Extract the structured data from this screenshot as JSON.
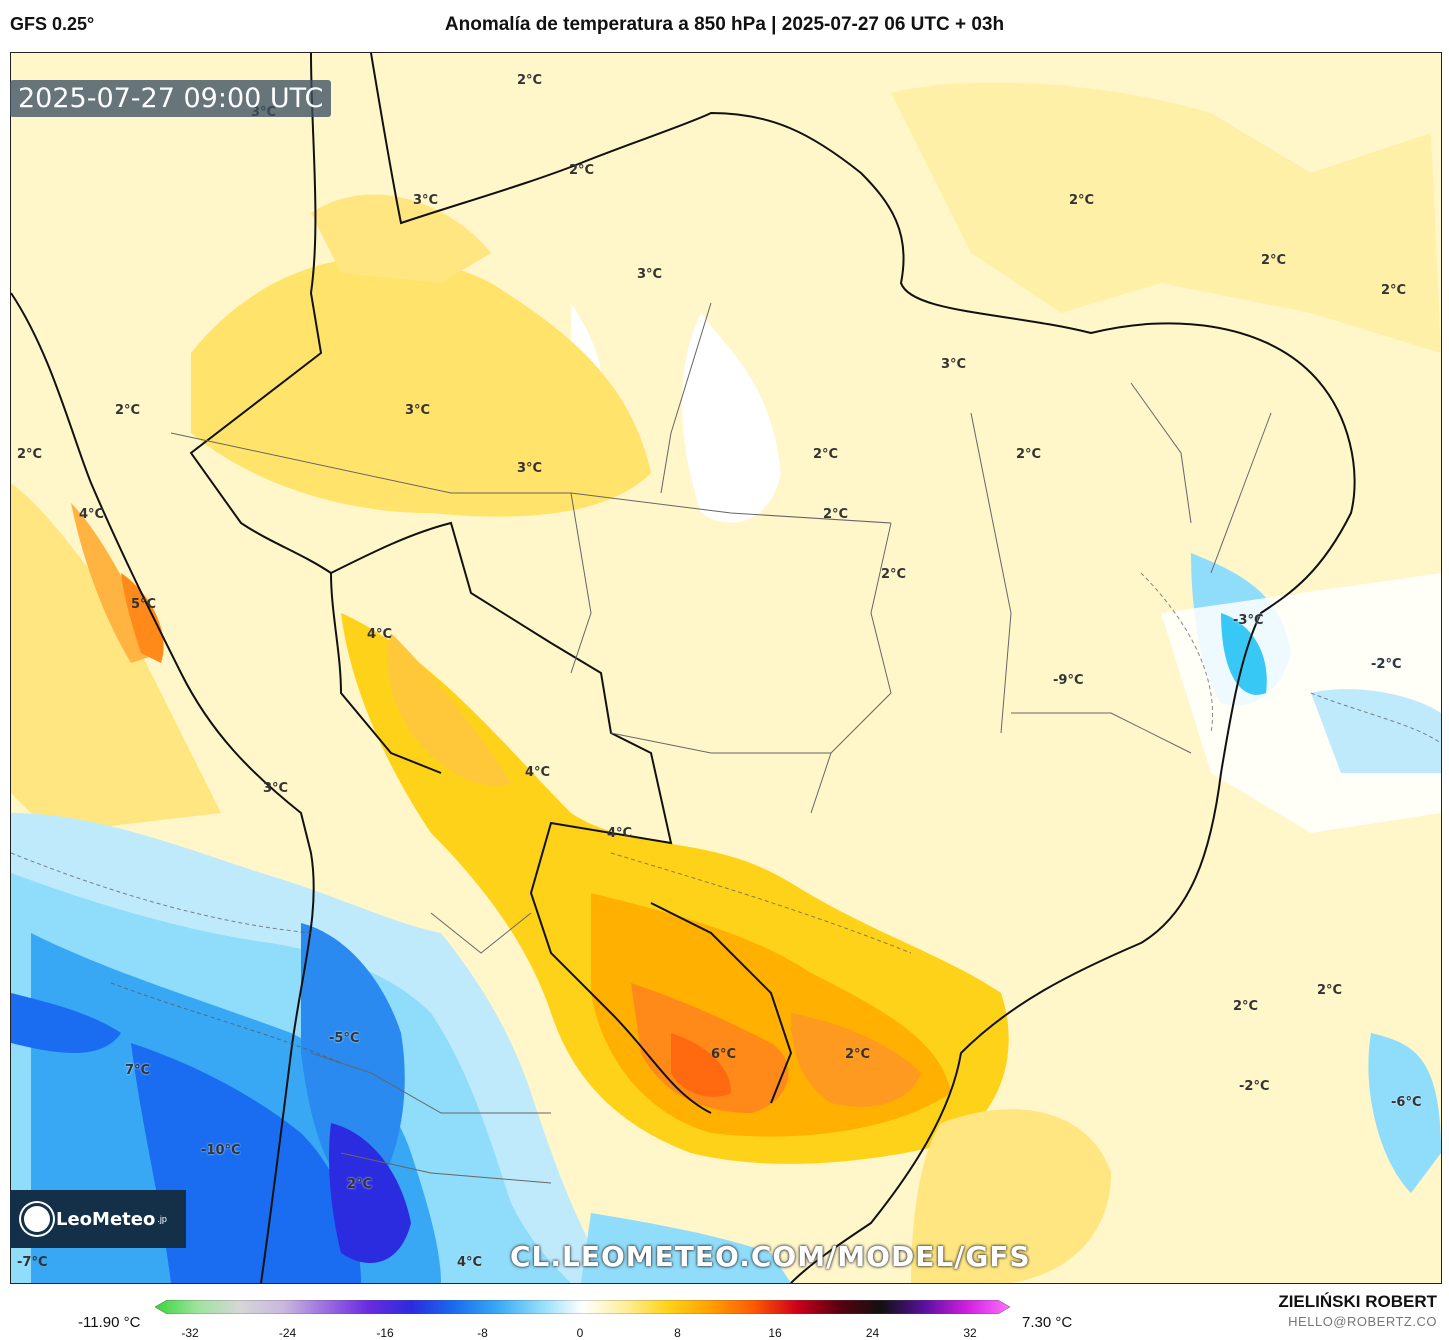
{
  "header": {
    "model": "GFS 0.25°",
    "title": "Anomalía de temperatura a 850 hPa | 2025-07-27 06 UTC + 03h"
  },
  "map": {
    "timestamp": "2025-07-27 09:00 UTC",
    "watermark": "CL.LEOMETEO.COM/MODEL/GFS",
    "logo": {
      "name": "LeoMeteo",
      "suffix": ".jp"
    },
    "labels": [
      {
        "text": "2°C"
      },
      {
        "text": "3°C"
      },
      {
        "text": "2°C"
      },
      {
        "text": "3°C"
      },
      {
        "text": "3°C"
      },
      {
        "text": "2°C"
      },
      {
        "text": "2°C"
      },
      {
        "text": "2°C"
      },
      {
        "text": "3°C"
      },
      {
        "text": "2°C"
      },
      {
        "text": "3°C"
      },
      {
        "text": "2°C"
      },
      {
        "text": "2°C"
      },
      {
        "text": "2°C"
      },
      {
        "text": "2°C"
      },
      {
        "text": "3°C"
      },
      {
        "text": "4°C"
      },
      {
        "text": "5°C"
      },
      {
        "text": "4°C"
      },
      {
        "text": "2°C"
      },
      {
        "text": "-2°C"
      },
      {
        "text": "-3°C"
      },
      {
        "text": "4°C"
      },
      {
        "text": "3°C"
      },
      {
        "text": "4°C"
      },
      {
        "text": "-9°C"
      },
      {
        "text": "-5°C"
      },
      {
        "text": "7°C"
      },
      {
        "text": "6°C"
      },
      {
        "text": "2°C"
      },
      {
        "text": "2°C"
      },
      {
        "text": "2°C"
      },
      {
        "text": "-2°C"
      },
      {
        "text": "-6°C"
      },
      {
        "text": "-10°C"
      },
      {
        "text": "2°C"
      },
      {
        "text": "-7°C"
      },
      {
        "text": "4°C"
      }
    ]
  },
  "colorbar": {
    "min_label": "-11.90 °C",
    "max_label": "7.30 °C",
    "ticks": [
      "-32",
      "-24",
      "-16",
      "-8",
      "0",
      "8",
      "16",
      "24",
      "32"
    ],
    "colors": [
      "#35d63a",
      "#9fe39d",
      "#d6d6d6",
      "#c9b8e0",
      "#9b6de0",
      "#6a2be0",
      "#2b2be0",
      "#1a6cf0",
      "#38a8f5",
      "#8fdcfb",
      "#ffffff",
      "#ffef9a",
      "#ffd21a",
      "#ffa000",
      "#ff5a00",
      "#d0001a",
      "#5a0010",
      "#111111",
      "#5a10a0",
      "#d020e0",
      "#ff70ff"
    ]
  },
  "footer": {
    "author": "ZIELIŃSKI ROBERT",
    "email": "HELLO@ROBERTZ.CO"
  }
}
